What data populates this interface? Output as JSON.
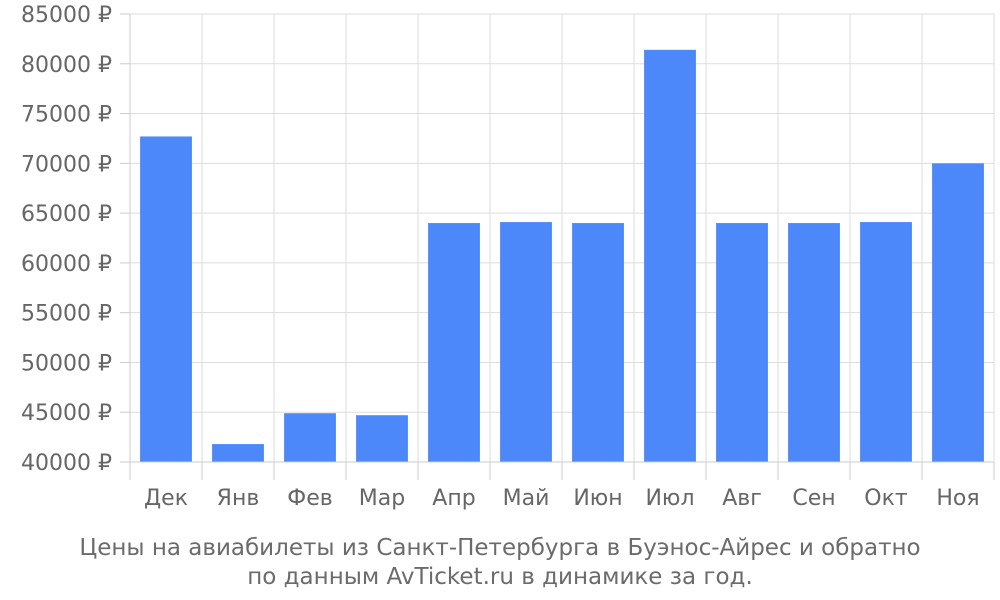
{
  "chart_data": {
    "type": "bar",
    "categories": [
      "Дек",
      "Янв",
      "Фев",
      "Мар",
      "Апр",
      "Май",
      "Июн",
      "Июл",
      "Авг",
      "Сен",
      "Окт",
      "Ноя"
    ],
    "values": [
      72700,
      41800,
      44900,
      44700,
      64000,
      64100,
      64000,
      81400,
      64000,
      64000,
      64100,
      70000
    ],
    "ylim": [
      40000,
      85000
    ],
    "yticks": [
      40000,
      45000,
      50000,
      55000,
      60000,
      65000,
      70000,
      75000,
      80000,
      85000
    ],
    "ytick_labels": [
      "40000 ₽",
      "45000 ₽",
      "50000 ₽",
      "55000 ₽",
      "60000 ₽",
      "65000 ₽",
      "70000 ₽",
      "75000 ₽",
      "80000 ₽",
      "85000 ₽"
    ],
    "grid": true,
    "bar_color": "#4d88fa",
    "caption_lines": [
      "Цены на авиабилеты из Санкт-Петербурга в Буэнос-Айрес и обратно",
      "по данным AvTicket.ru в динамике за год."
    ]
  }
}
